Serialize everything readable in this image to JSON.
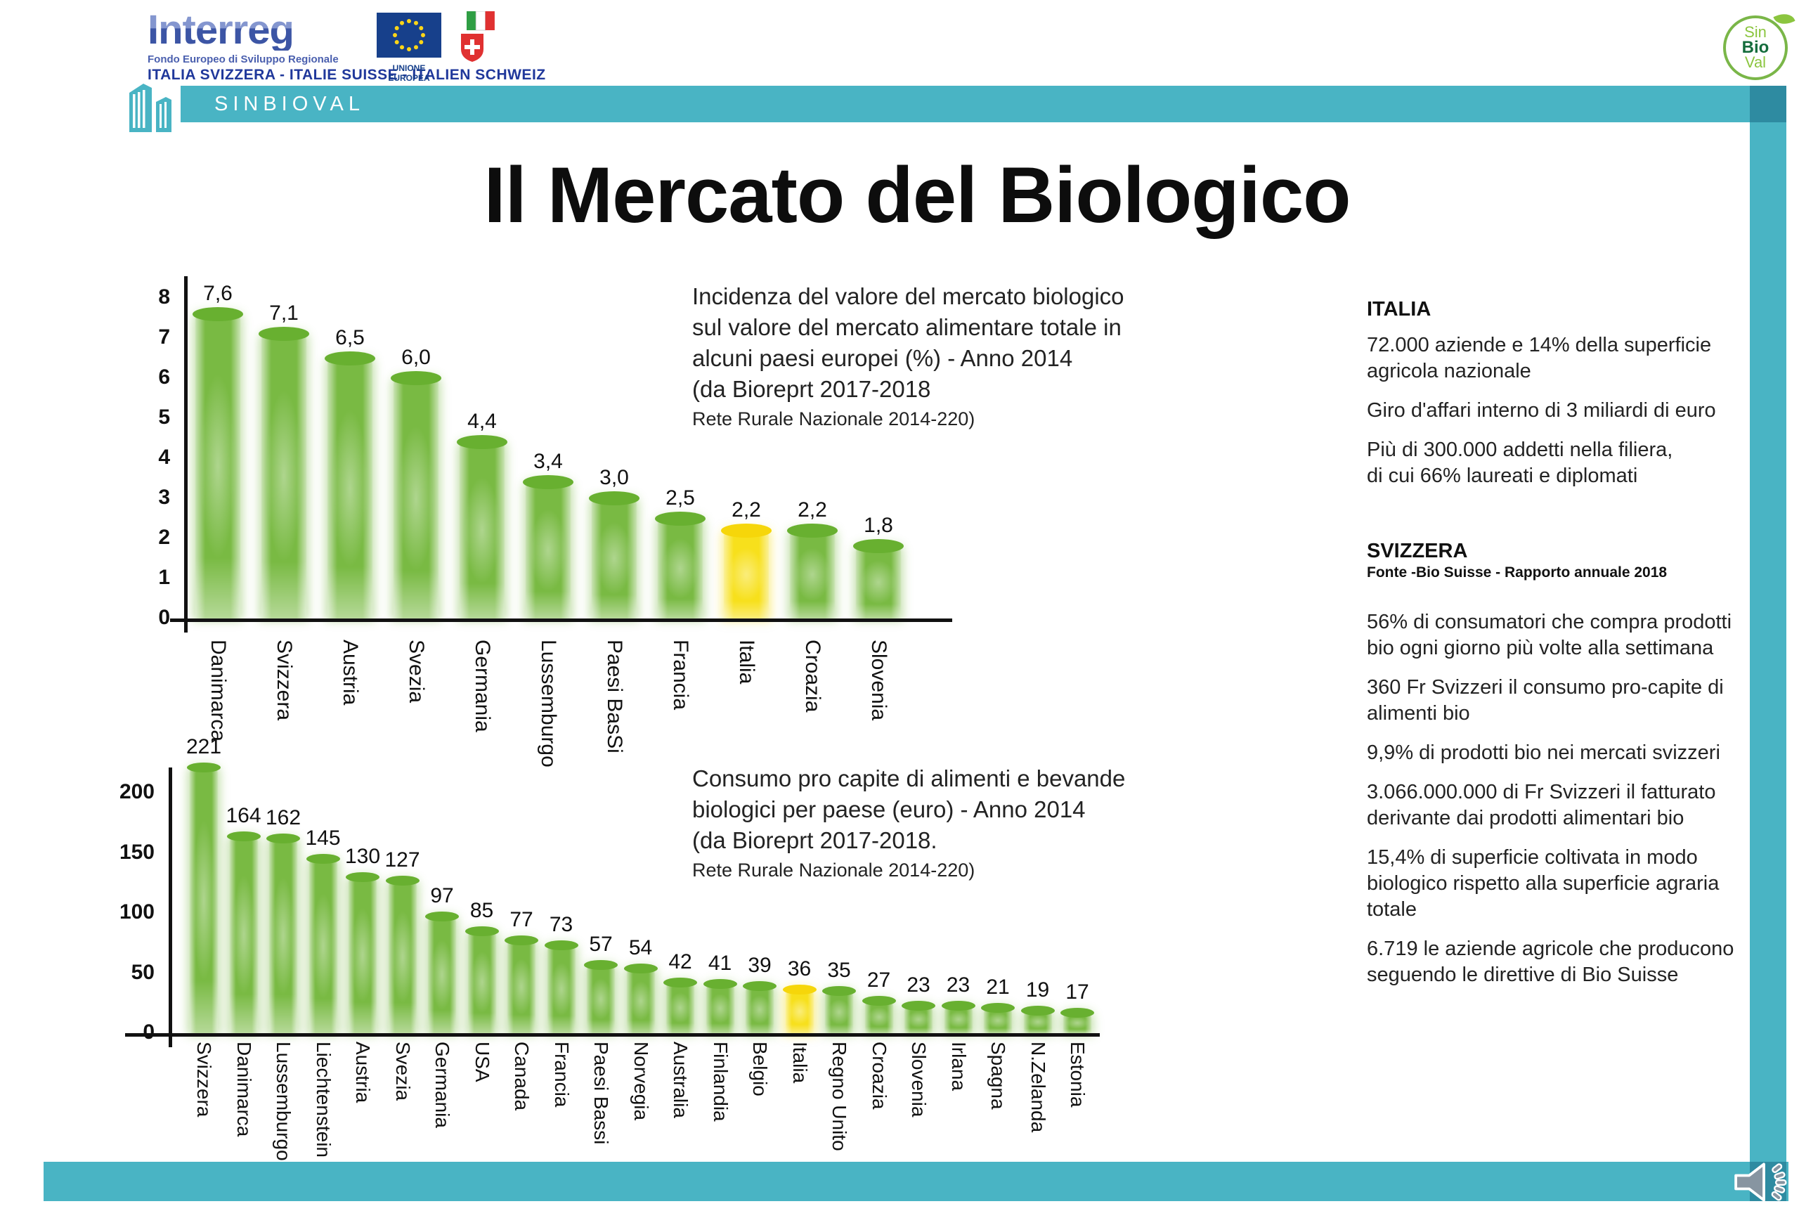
{
  "header": {
    "interreg": {
      "brand": "Interreg",
      "subtitle": "Fondo Europeo di Sviluppo Regionale",
      "programme": "ITALIA SVIZZERA - ITALIE SUISSE - ITALIEN SCHWEIZ",
      "eu_label": "UNIONE EUROPEA"
    },
    "band_label": "SINBIOVAL"
  },
  "sinbioval_logo": {
    "line1": "Sin",
    "line2": "Bio",
    "line3": "Val"
  },
  "title": "Il Mercato del Biologico",
  "colors": {
    "teal": "#49b4c4",
    "teal_dark": "#2e8ba1",
    "bar_green": "#79ba43",
    "bar_green_cap": "#68b030",
    "bar_yellow": "#f7e01c",
    "bar_yellow_cap": "#f6d60a"
  },
  "chart_data": [
    {
      "type": "bar",
      "title": "Incidenza del valore del mercato biologico sul valore del mercato alimentare totale in alcuni paesi europei (%) - Anno 2014 (da Bioreprt 2017-2018 Rete Rurale Nazionale 2014-220)",
      "title_lines": [
        "Incidenza del valore del mercato biologico",
        "sul valore del mercato alimentare  totale in",
        "alcuni paesi europei (%) - Anno 2014",
        "(da Bioreprt 2017-2018"
      ],
      "note": "Rete Rurale Nazionale 2014-220)",
      "categories": [
        "Danimarca",
        "Svizzera",
        "Austria",
        "Svezia",
        "Germania",
        "Lussemburgo",
        "Paesi BasSi",
        "Francia",
        "Italia",
        "Croazia",
        "Slovenia"
      ],
      "values": [
        7.6,
        7.1,
        6.5,
        6.0,
        4.4,
        3.4,
        3.0,
        2.5,
        2.2,
        2.2,
        1.8
      ],
      "value_labels": [
        "7,6",
        "7,1",
        "6,5",
        "6,0",
        "4,4",
        "3,4",
        "3,0",
        "2,5",
        "2,2",
        "2,2",
        "1,8"
      ],
      "highlight_category": "Italia",
      "highlight_index": 8,
      "yticks": [
        8,
        7,
        6,
        5,
        4,
        3,
        2,
        1,
        0
      ],
      "ylim": [
        0,
        8
      ],
      "xlabel": "",
      "ylabel": "",
      "unit": "%",
      "grid": false,
      "legend": false
    },
    {
      "type": "bar",
      "title": "Consumo pro capite di alimenti e bevande biologici per paese (euro) - Anno 2014 (da Bioreprt 2017-2018. Rete Rurale Nazionale 2014-220)",
      "title_lines": [
        "Consumo pro capite di alimenti e bevande",
        "biologici per paese (euro) - Anno 2014",
        "(da Bioreprt 2017-2018."
      ],
      "note": "Rete Rurale Nazionale 2014-220)",
      "categories": [
        "Svizzera",
        "Danimarca",
        "Lussemburgo",
        "Liechtenstein",
        "Austria",
        "Svezia",
        "Germania",
        "USA",
        "Canada",
        "Francia",
        "Paesi Bassi",
        "Norvegia",
        "Australia",
        "Finlandia",
        "Belgio",
        "Italia",
        "Regno Unito",
        "Croazia",
        "Slovenia",
        "Irlana",
        "Spagna",
        "N.Zelanda",
        "Estonia"
      ],
      "values": [
        221,
        164,
        162,
        145,
        130,
        127,
        97,
        85,
        77,
        73,
        57,
        54,
        42,
        41,
        39,
        36,
        35,
        27,
        23,
        23,
        21,
        19,
        17
      ],
      "value_labels": [
        "221",
        "164",
        "162",
        "145",
        "130",
        "127",
        "97",
        "85",
        "77",
        "73",
        "57",
        "54",
        "42",
        "41",
        "39",
        "36",
        "35",
        "27",
        "23",
        "23",
        "21",
        "19",
        "17"
      ],
      "highlight_category": "Italia",
      "highlight_index": 15,
      "yticks": [
        200,
        150,
        100,
        50,
        0
      ],
      "ylim": [
        0,
        230
      ],
      "xlabel": "",
      "ylabel": "",
      "unit": "euro",
      "grid": false,
      "legend": false
    }
  ],
  "right_panel": {
    "italia": {
      "heading": "ITALIA",
      "items": [
        "72.000 aziende e 14% della superficie agricola nazionale",
        "Giro d'affari interno di 3 miliardi di euro",
        "Più di 300.000 addetti nella filiera,\ndi cui 66% laureati e diplomati"
      ]
    },
    "svizzera": {
      "heading": "SVIZZERA",
      "source": "Fonte -Bio Suisse - Rapporto annuale 2018",
      "items": [
        "56% di consumatori che compra prodotti bio ogni giorno più volte alla settimana",
        "360 Fr Svizzeri il consumo pro-capite di alimenti bio",
        "9,9% di prodotti bio nei mercati svizzeri",
        "3.066.000.000 di Fr Svizzeri il fatturato derivante dai prodotti alimentari bio",
        "15,4% di superficie coltivata in modo biologico rispetto alla superficie agraria totale",
        "6.719 le aziende agricole che producono seguendo le direttive di Bio Suisse"
      ]
    }
  }
}
